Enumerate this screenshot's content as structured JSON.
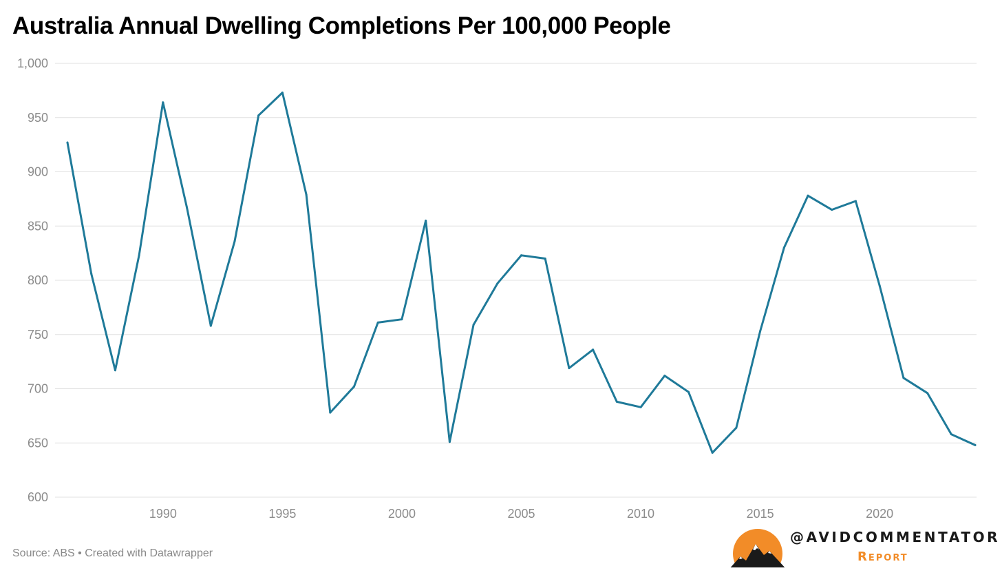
{
  "footer": {
    "source": "Source: ABS • Created with Datawrapper"
  },
  "branding": {
    "handle": "@AVIDCOMMENTATOR",
    "sub": "Report",
    "accent": "#f28c28",
    "mountain_color": "#1a1a1a"
  },
  "colors": {
    "line": "#1f7a99",
    "grid": "#e0e0e0",
    "tick_text": "#8c8c8c"
  },
  "chart_data": {
    "type": "line",
    "title": "Australia Annual Dwelling Completions Per 100,000 People",
    "xlabel": "",
    "ylabel": "",
    "ylim": [
      600,
      1000
    ],
    "xlim": [
      1986,
      2024
    ],
    "yticks": [
      600,
      650,
      700,
      750,
      800,
      850,
      900,
      950,
      1000
    ],
    "ytick_labels": [
      "600",
      "650",
      "700",
      "750",
      "800",
      "850",
      "900",
      "950",
      "1,000"
    ],
    "xticks": [
      1990,
      1995,
      2000,
      2005,
      2010,
      2015,
      2020
    ],
    "xtick_labels": [
      "1990",
      "1995",
      "2000",
      "2005",
      "2010",
      "2015",
      "2020"
    ],
    "grid": true,
    "legend": "none",
    "series": [
      {
        "x": [
          1986,
          1987,
          1988,
          1989,
          1990,
          1991,
          1992,
          1993,
          1994,
          1995,
          1996,
          1997,
          1998,
          1999,
          2000,
          2001,
          2002,
          2003,
          2004,
          2005,
          2006,
          2007,
          2008,
          2009,
          2010,
          2011,
          2012,
          2013,
          2014,
          2015,
          2016,
          2017,
          2018,
          2019,
          2020,
          2021,
          2022,
          2023,
          2024
        ],
        "values": [
          927,
          806,
          717,
          823,
          964,
          867,
          758,
          836,
          952,
          973,
          879,
          678,
          702,
          761,
          764,
          855,
          651,
          759,
          797,
          823,
          820,
          719,
          736,
          688,
          683,
          712,
          697,
          641,
          664,
          753,
          830,
          878,
          865,
          873,
          795,
          710,
          696,
          658,
          648
        ]
      }
    ]
  }
}
